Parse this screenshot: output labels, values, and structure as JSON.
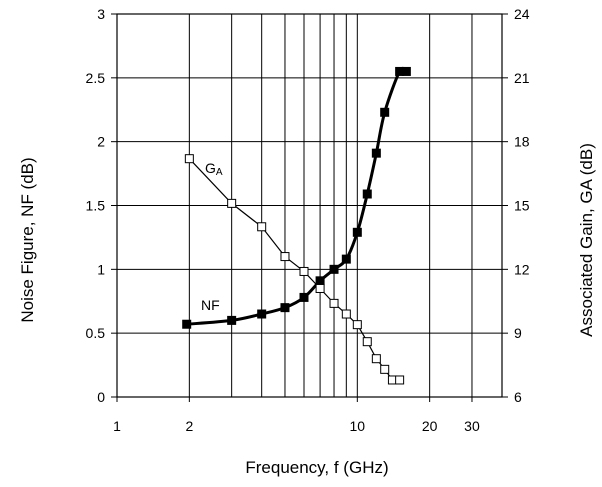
{
  "chart_data": {
    "type": "line",
    "xlabel": "Frequency, f (GHz)",
    "ylabel_left": "Noise Figure, NF (dB)",
    "ylabel_right": "Associated Gain, GA (dB)",
    "xscale": "log",
    "xlim": [
      1,
      40
    ],
    "ylim_left": [
      0,
      3
    ],
    "ylim_right": [
      6,
      24
    ],
    "x_ticks": [
      1,
      2,
      10,
      20,
      30
    ],
    "x_tick_labels": [
      "1",
      "2",
      "10",
      "20",
      "30"
    ],
    "y_ticks_left": [
      0,
      0.5,
      1,
      1.5,
      2,
      2.5,
      3
    ],
    "y_tick_labels_left": [
      "0",
      "0.5",
      "1",
      "1.5",
      "2",
      "2.5",
      "3"
    ],
    "y_ticks_right": [
      6,
      9,
      12,
      15,
      18,
      21,
      24
    ],
    "y_tick_labels_right": [
      "6",
      "9",
      "12",
      "15",
      "18",
      "21",
      "24"
    ],
    "grid": true,
    "series": [
      {
        "name": "NF",
        "axis": "left",
        "marker": "filled-square",
        "x": [
          1.95,
          3,
          4,
          5,
          6,
          7,
          8,
          9,
          10,
          11,
          12,
          13,
          15,
          16
        ],
        "values": [
          0.57,
          0.6,
          0.65,
          0.7,
          0.78,
          0.91,
          1.0,
          1.08,
          1.29,
          1.59,
          1.91,
          2.23,
          2.55,
          2.55
        ]
      },
      {
        "name": "GA",
        "axis": "right",
        "marker": "open-square",
        "x": [
          2,
          3,
          4,
          5,
          6,
          7,
          8,
          9,
          10,
          11,
          12,
          13,
          14,
          15
        ],
        "values": [
          17.2,
          15.1,
          14.0,
          12.6,
          11.9,
          11.1,
          10.4,
          9.9,
          9.4,
          8.6,
          7.8,
          7.3,
          6.8,
          6.8
        ]
      }
    ]
  },
  "labels": {
    "nf_label": "NF",
    "ga_label_main": "G",
    "ga_label_sub": "A"
  }
}
